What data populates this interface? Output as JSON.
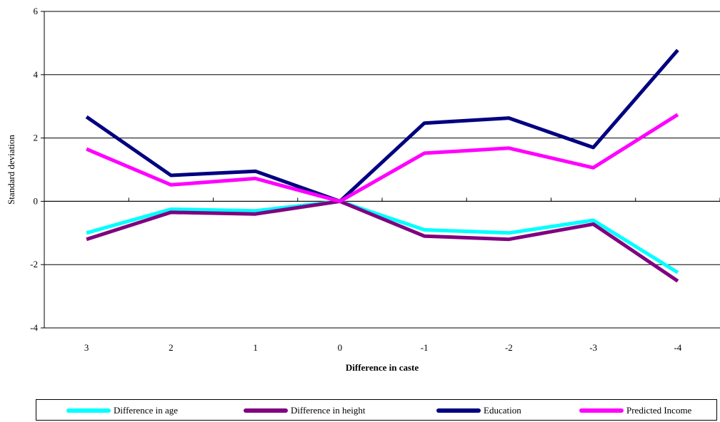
{
  "chart_data": {
    "type": "line",
    "title": "",
    "xlabel": "Difference in caste",
    "ylabel": "Standard deviation",
    "categories": [
      "3",
      "2",
      "1",
      "0",
      "-1",
      "-2",
      "-3",
      "-4"
    ],
    "ylim": [
      -4,
      6
    ],
    "yticks": [
      -4,
      -2,
      0,
      2,
      4,
      6
    ],
    "ytick_labels": [
      "-4",
      "-2",
      "0",
      "2",
      "4",
      "6"
    ],
    "grid": "horizontal",
    "legend_position": "bottom",
    "series": [
      {
        "name": "Difference in age",
        "color": "#00ffff",
        "values": [
          -1.0,
          -0.25,
          -0.3,
          0.0,
          -0.9,
          -1.0,
          -0.6,
          -2.25
        ]
      },
      {
        "name": "Difference in height",
        "color": "#800080",
        "values": [
          -1.2,
          -0.35,
          -0.4,
          0.0,
          -1.1,
          -1.2,
          -0.72,
          -2.52
        ]
      },
      {
        "name": "Education",
        "color": "#000080",
        "values": [
          2.67,
          0.82,
          0.95,
          0.0,
          2.47,
          2.63,
          1.7,
          4.78
        ]
      },
      {
        "name": "Predicted Income",
        "color": "#ff00ff",
        "values": [
          1.65,
          0.52,
          0.72,
          0.0,
          1.52,
          1.68,
          1.06,
          2.74
        ]
      }
    ]
  }
}
